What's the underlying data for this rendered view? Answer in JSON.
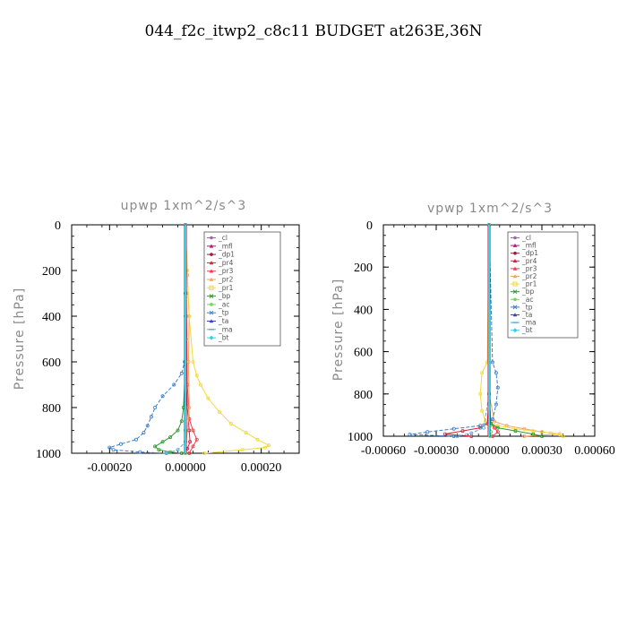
{
  "figure_title": "044_f2c_itwp2_c8c11  BUDGET at263E,36N",
  "legend_entries": [
    "_cl",
    "_mfl",
    "_dp1",
    "_pr4",
    "_pr3",
    "_pr2",
    "_pr1",
    "_bp",
    "_ac",
    "_tp",
    "_ta",
    "_ma",
    "_bt"
  ],
  "colors": {
    "_cl": "#a065a8",
    "_mfl": "#b0177e",
    "_dp1": "#9b1c3c",
    "_pr4": "#d8223c",
    "_pr3": "#ee3a4c",
    "_pr2": "#f3a45a",
    "_pr1": "#f2d93a",
    "_bp": "#2e9a2e",
    "_ac": "#72d35a",
    "_tp": "#3a7fd0",
    "_ta": "#3848c0",
    "_ma": "#5ab0d8",
    "_bt": "#34d0e8"
  },
  "chart_data": [
    {
      "type": "line",
      "title": "upwp   1xm^2/s^3",
      "ylabel": "Pressure [hPa]",
      "xlabel": "",
      "xlim": [
        -0.0003,
        0.0003
      ],
      "ylim": [
        1000,
        0
      ],
      "xticks": [
        "-0.00020",
        "0.00000",
        "0.00020"
      ],
      "xtick_values": [
        -0.0002,
        0.0,
        0.0002
      ],
      "yticks": [
        "0",
        "200",
        "400",
        "600",
        "800",
        "1000"
      ],
      "ytick_values": [
        0,
        200,
        400,
        600,
        800,
        1000
      ],
      "legend": "top-right",
      "series": [
        {
          "name": "_cl",
          "x": [
            0,
            0,
            0,
            0,
            0,
            0,
            0,
            0
          ],
          "y": [
            0,
            150,
            300,
            450,
            600,
            750,
            900,
            1000
          ]
        },
        {
          "name": "_mfl",
          "x": [
            0,
            0,
            0,
            0,
            0,
            0,
            0,
            0
          ],
          "y": [
            0,
            150,
            300,
            450,
            600,
            750,
            900,
            1000
          ]
        },
        {
          "name": "_dp1",
          "x": [
            0,
            0,
            0,
            0,
            0,
            0,
            0,
            0
          ],
          "y": [
            0,
            150,
            300,
            450,
            600,
            750,
            900,
            1000
          ]
        },
        {
          "name": "_pr4",
          "x": [
            0,
            0,
            0,
            5e-06,
            1e-05,
            1.2e-05,
            5e-06,
            0
          ],
          "y": [
            0,
            300,
            600,
            800,
            900,
            950,
            980,
            1000
          ]
        },
        {
          "name": "_pr3",
          "x": [
            0,
            3e-06,
            5e-06,
            1e-05,
            2e-05,
            3e-05,
            2e-05,
            1e-05
          ],
          "y": [
            0,
            400,
            700,
            850,
            900,
            940,
            970,
            1000
          ]
        },
        {
          "name": "_pr2",
          "x": [
            0,
            5e-06,
            1e-05,
            8e-06,
            1e-05,
            0
          ],
          "y": [
            0,
            220,
            400,
            600,
            800,
            1000
          ]
        },
        {
          "name": "_pr1",
          "x": [
            0,
            5e-06,
            1e-05,
            2e-05,
            3e-05,
            4e-05,
            6e-05,
            9e-05,
            0.00012,
            0.00016,
            0.00019,
            0.00022,
            0.00021,
            0.00015,
            5e-05
          ],
          "y": [
            0,
            200,
            400,
            600,
            660,
            700,
            760,
            820,
            870,
            910,
            940,
            965,
            975,
            985,
            1000
          ]
        },
        {
          "name": "_bp",
          "x": [
            0,
            0,
            -5e-06,
            -1e-05,
            -2e-05,
            -4e-05,
            -6e-05,
            -8e-05,
            -7e-05,
            -4e-05,
            -1e-05
          ],
          "y": [
            0,
            600,
            800,
            860,
            900,
            930,
            950,
            970,
            985,
            995,
            1000
          ]
        },
        {
          "name": "_ac",
          "x": [
            0,
            2e-06,
            3e-06,
            2e-06,
            2e-06,
            1e-06,
            2e-06,
            0,
            0
          ],
          "y": [
            0,
            200,
            300,
            400,
            500,
            600,
            800,
            900,
            1000
          ]
        },
        {
          "name": "_tp",
          "x": [
            0,
            -2e-06,
            -1e-05,
            -3e-05,
            -6e-05,
            -8e-05,
            -9e-05,
            -0.0001,
            -0.00011,
            -0.00013,
            -0.00017,
            -0.0002,
            -0.00019,
            -0.00012,
            -5e-05
          ],
          "y": [
            0,
            600,
            650,
            700,
            750,
            800,
            840,
            880,
            910,
            940,
            960,
            975,
            985,
            995,
            1000
          ]
        },
        {
          "name": "_ta",
          "x": [
            0,
            0,
            0,
            0,
            0,
            0
          ],
          "y": [
            0,
            200,
            400,
            600,
            800,
            1000
          ]
        },
        {
          "name": "_ma",
          "x": [
            0,
            0,
            0,
            0,
            -2e-05,
            -5e-05
          ],
          "y": [
            0,
            400,
            800,
            950,
            985,
            1000
          ]
        },
        {
          "name": "_bt",
          "x": [
            0,
            0,
            0,
            0,
            0,
            0
          ],
          "y": [
            0,
            200,
            400,
            600,
            800,
            1000
          ]
        }
      ]
    },
    {
      "type": "line",
      "title": "vpwp   1xm^2/s^3",
      "ylabel": "Pressure [hPa]",
      "xlabel": "",
      "xlim": [
        -0.0006,
        0.0006
      ],
      "ylim": [
        1000,
        0
      ],
      "xticks": [
        "-0.00060",
        "-0.00030",
        "0.00000",
        "0.00030",
        "0.00060"
      ],
      "xtick_values": [
        -0.0006,
        -0.0003,
        0.0,
        0.0003,
        0.0006
      ],
      "yticks": [
        "0",
        "200",
        "400",
        "600",
        "800",
        "1000"
      ],
      "ytick_values": [
        0,
        200,
        400,
        600,
        800,
        1000
      ],
      "legend": "top-right",
      "series": [
        {
          "name": "_cl",
          "x": [
            0,
            0,
            0,
            0,
            0,
            0,
            0
          ],
          "y": [
            0,
            200,
            400,
            600,
            800,
            950,
            1000
          ]
        },
        {
          "name": "_mfl",
          "x": [
            0,
            0,
            0,
            0,
            0,
            0,
            0
          ],
          "y": [
            0,
            200,
            400,
            600,
            800,
            950,
            1000
          ]
        },
        {
          "name": "_dp1",
          "x": [
            0,
            0,
            0,
            0,
            0,
            0,
            0
          ],
          "y": [
            0,
            200,
            400,
            600,
            800,
            950,
            1000
          ]
        },
        {
          "name": "_pr4",
          "x": [
            0,
            0,
            -1e-05,
            -5e-05,
            -0.00015,
            -0.00025,
            -0.0001
          ],
          "y": [
            0,
            800,
            940,
            960,
            975,
            990,
            1000
          ]
        },
        {
          "name": "_pr3",
          "x": [
            0,
            0,
            1e-05,
            3e-05,
            5e-05,
            2e-05
          ],
          "y": [
            0,
            800,
            940,
            960,
            980,
            1000
          ]
        },
        {
          "name": "_pr2",
          "x": [
            0,
            0,
            3e-05,
            0.0001,
            0.0002,
            0.0003,
            0.0004,
            0.0002
          ],
          "y": [
            0,
            800,
            930,
            950,
            965,
            980,
            990,
            1000
          ]
        },
        {
          "name": "_pr1",
          "x": [
            0,
            -1e-05,
            -4e-05,
            -5e-05,
            -4e-05,
            -2e-05,
            5e-05,
            0.00015,
            0.00025,
            0.00035,
            0.0004,
            0.00042
          ],
          "y": [
            0,
            650,
            700,
            800,
            880,
            930,
            950,
            965,
            975,
            985,
            992,
            1000
          ]
        },
        {
          "name": "_bp",
          "x": [
            0,
            0,
            1e-05,
            5e-05,
            0.00015,
            0.00025,
            0.0003
          ],
          "y": [
            0,
            800,
            940,
            960,
            975,
            990,
            1000
          ]
        },
        {
          "name": "_ac",
          "x": [
            0,
            0,
            5e-06,
            1e-05,
            5e-06
          ],
          "y": [
            0,
            800,
            950,
            980,
            1000
          ]
        },
        {
          "name": "_tp",
          "x": [
            0,
            2e-05,
            4e-05,
            5e-05,
            4e-05,
            2e-05,
            -5e-05,
            -0.0002,
            -0.00035,
            -0.00045,
            -0.0002
          ],
          "y": [
            0,
            650,
            700,
            770,
            850,
            920,
            950,
            965,
            980,
            992,
            1000
          ]
        },
        {
          "name": "_ta",
          "x": [
            0,
            0,
            0,
            0,
            0
          ],
          "y": [
            0,
            400,
            800,
            950,
            1000
          ]
        },
        {
          "name": "_ma",
          "x": [
            0,
            0,
            -3e-05,
            -0.0001,
            -0.00018
          ],
          "y": [
            0,
            800,
            960,
            985,
            1000
          ]
        },
        {
          "name": "_bt",
          "x": [
            0,
            0,
            0,
            0,
            0
          ],
          "y": [
            0,
            400,
            800,
            950,
            1000
          ]
        }
      ]
    }
  ]
}
